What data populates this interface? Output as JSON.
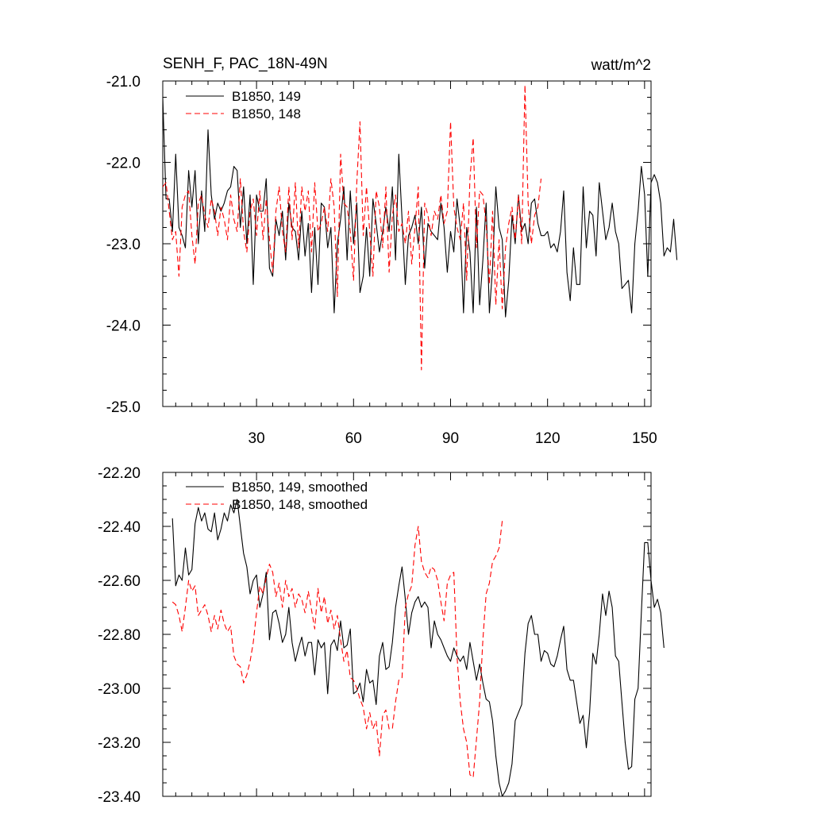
{
  "figure": {
    "title": "SENH_F, PAC_18N-49N",
    "units": "watt/m^2"
  },
  "chart_data": [
    {
      "type": "line",
      "title": "SENH_F, PAC_18N-49N",
      "units": "watt/m^2",
      "xlim": [
        1,
        152
      ],
      "ylim": [
        -25.0,
        -21.0
      ],
      "x_ticks": [
        30,
        60,
        90,
        120,
        150
      ],
      "x_tick_labels": [
        "30",
        "60",
        "90",
        "120",
        "150"
      ],
      "y_ticks": [
        -25.0,
        -24.0,
        -23.0,
        -22.0,
        -21.0
      ],
      "y_tick_labels": [
        "-25.0",
        "-24.0",
        "-23.0",
        "-22.0",
        "-21.0"
      ],
      "legend_position": "top-left",
      "series": [
        {
          "name": "B1850, 149",
          "color": "#000000",
          "dash": "solid",
          "x_start": 1,
          "values": [
            -21.2,
            -22.45,
            -22.45,
            -22.85,
            -21.9,
            -22.8,
            -22.9,
            -23.05,
            -22.1,
            -22.55,
            -22.1,
            -23.0,
            -22.35,
            -22.85,
            -21.6,
            -22.4,
            -22.7,
            -22.5,
            -22.6,
            -22.5,
            -22.35,
            -22.3,
            -22.05,
            -22.1,
            -22.8,
            -22.3,
            -23.0,
            -22.4,
            -23.5,
            -22.4,
            -22.6,
            -22.6,
            -22.2,
            -23.3,
            -23.4,
            -22.7,
            -22.9,
            -22.6,
            -23.2,
            -22.5,
            -22.8,
            -22.85,
            -23.2,
            -22.6,
            -23.15,
            -22.75,
            -23.6,
            -22.8,
            -23.5,
            -22.5,
            -22.55,
            -23.05,
            -22.8,
            -23.85,
            -23.0,
            -22.7,
            -22.3,
            -23.2,
            -22.35,
            -23.0,
            -22.5,
            -23.6,
            -23.4,
            -22.8,
            -23.4,
            -22.45,
            -22.75,
            -23.1,
            -22.85,
            -22.55,
            -22.85,
            -22.3,
            -23.2,
            -21.9,
            -22.7,
            -23.5,
            -22.9,
            -22.8,
            -22.65,
            -23.0,
            -22.55,
            -23.3,
            -22.75,
            -22.85,
            -22.9,
            -22.95,
            -22.5,
            -22.8,
            -23.35,
            -22.85,
            -23.1,
            -22.45,
            -22.8,
            -23.85,
            -22.8,
            -23.1,
            -23.85,
            -22.55,
            -23.75,
            -23.2,
            -22.5,
            -23.85,
            -23.3,
            -22.3,
            -22.8,
            -22.95,
            -23.9,
            -23.45,
            -22.65,
            -23.0,
            -22.4,
            -22.85,
            -22.75,
            -23.0,
            -22.5,
            -22.45,
            -22.75,
            -22.9,
            -22.9,
            -22.85,
            -23.05,
            -23.0,
            -23.1,
            -22.85,
            -22.35,
            -23.35,
            -23.7,
            -23.05,
            -23.5,
            -23.5,
            -22.3,
            -23.05,
            -22.6,
            -22.65,
            -23.15,
            -22.25,
            -22.6,
            -22.95,
            -22.8,
            -22.5,
            -22.85,
            -23.0,
            -23.55,
            -23.5,
            -23.45,
            -23.85,
            -23.0,
            -22.6,
            -22.05,
            -22.4,
            -23.4,
            -22.25,
            -22.15,
            -22.25,
            -22.5,
            -23.15,
            -23.05,
            -23.1,
            -22.7,
            -23.2
          ]
        },
        {
          "name": "B1850, 148",
          "color": "#ff0000",
          "dash": "dashed",
          "x_start": 1,
          "values": [
            -22.3,
            -22.25,
            -22.6,
            -22.95,
            -22.85,
            -23.4,
            -22.55,
            -22.4,
            -22.35,
            -22.9,
            -23.25,
            -22.5,
            -22.4,
            -22.65,
            -22.8,
            -22.45,
            -22.6,
            -22.9,
            -22.55,
            -22.7,
            -22.95,
            -22.4,
            -22.7,
            -22.85,
            -22.2,
            -22.85,
            -23.1,
            -22.6,
            -22.45,
            -22.9,
            -22.35,
            -22.95,
            -22.45,
            -22.95,
            -23.35,
            -22.6,
            -22.3,
            -22.85,
            -23.1,
            -22.3,
            -22.95,
            -22.25,
            -23.05,
            -22.3,
            -22.6,
            -22.35,
            -23.1,
            -22.25,
            -22.85,
            -22.75,
            -22.55,
            -22.85,
            -22.2,
            -22.55,
            -23.65,
            -21.9,
            -22.5,
            -22.55,
            -22.85,
            -23.45,
            -22.25,
            -21.5,
            -22.9,
            -22.3,
            -22.85,
            -23.4,
            -22.35,
            -22.55,
            -23.05,
            -22.3,
            -23.35,
            -22.65,
            -22.4,
            -22.85,
            -22.75,
            -23.0,
            -22.6,
            -23.25,
            -22.8,
            -22.3,
            -24.55,
            -22.5,
            -22.65,
            -22.9,
            -22.6,
            -22.7,
            -22.4,
            -22.75,
            -22.6,
            -21.5,
            -22.55,
            -22.8,
            -22.95,
            -22.5,
            -23.45,
            -22.2,
            -21.7,
            -23.05,
            -22.35,
            -22.4,
            -22.75,
            -23.5,
            -22.6,
            -23.75,
            -22.95,
            -23.8,
            -23.05,
            -22.75,
            -22.55,
            -22.95,
            -22.4,
            -23.0,
            -21.05,
            -22.5,
            -23.0,
            -22.65,
            -22.55,
            -22.2
          ]
        }
      ]
    },
    {
      "type": "line",
      "title": "",
      "xlim": [
        1,
        152
      ],
      "ylim": [
        -23.4,
        -22.2
      ],
      "x_ticks": [
        30,
        60,
        90,
        120,
        150
      ],
      "y_ticks": [
        -23.4,
        -23.2,
        -23.0,
        -22.8,
        -22.6,
        -22.4,
        -22.2
      ],
      "y_tick_labels": [
        "-23.40",
        "-23.20",
        "-23.00",
        "-22.80",
        "-22.60",
        "-22.40",
        "-22.20"
      ],
      "legend_position": "top-left",
      "series": [
        {
          "name": "B1850, 149, smoothed",
          "color": "#000000",
          "dash": "solid",
          "x_start": 4,
          "values": [
            -22.37,
            -22.62,
            -22.58,
            -22.6,
            -22.48,
            -22.58,
            -22.56,
            -22.39,
            -22.33,
            -22.38,
            -22.35,
            -22.41,
            -22.42,
            -22.35,
            -22.45,
            -22.41,
            -22.35,
            -22.38,
            -22.32,
            -22.35,
            -22.3,
            -22.4,
            -22.5,
            -22.55,
            -22.65,
            -22.6,
            -22.58,
            -22.7,
            -22.65,
            -22.57,
            -22.82,
            -22.72,
            -22.71,
            -22.76,
            -22.83,
            -22.8,
            -22.7,
            -22.83,
            -22.9,
            -22.85,
            -22.81,
            -22.88,
            -22.83,
            -22.83,
            -22.95,
            -22.82,
            -22.85,
            -22.83,
            -23.02,
            -22.84,
            -22.82,
            -22.86,
            -22.75,
            -22.85,
            -22.84,
            -22.78,
            -23.02,
            -23.01,
            -22.98,
            -23.05,
            -22.93,
            -22.98,
            -22.97,
            -23.06,
            -22.88,
            -22.83,
            -22.93,
            -22.92,
            -22.83,
            -22.7,
            -22.62,
            -22.55,
            -22.67,
            -22.8,
            -22.72,
            -22.68,
            -22.66,
            -22.7,
            -22.68,
            -22.7,
            -22.85,
            -22.75,
            -22.8,
            -22.82,
            -22.85,
            -22.88,
            -22.9,
            -22.85,
            -22.88,
            -22.9,
            -22.88,
            -22.93,
            -22.83,
            -22.9,
            -22.97,
            -22.91,
            -22.98,
            -23.04,
            -23.05,
            -23.12,
            -23.25,
            -23.35,
            -23.4,
            -23.38,
            -23.35,
            -23.28,
            -23.12,
            -23.09,
            -23.06,
            -22.87,
            -22.76,
            -22.73,
            -22.8,
            -22.8,
            -22.9,
            -22.86,
            -22.87,
            -22.91,
            -22.92,
            -22.88,
            -22.82,
            -22.77,
            -22.93,
            -22.97,
            -22.97,
            -23.05,
            -23.13,
            -23.1,
            -23.22,
            -23.09,
            -22.87,
            -22.91,
            -22.8,
            -22.65,
            -22.73,
            -22.64,
            -22.7,
            -22.88,
            -22.9,
            -23.05,
            -23.2,
            -23.3,
            -23.29,
            -23.04,
            -23.0,
            -22.72,
            -22.46,
            -22.46,
            -22.6,
            -22.7,
            -22.67,
            -22.72,
            -22.85
          ]
        },
        {
          "name": "B1850, 148, smoothed",
          "color": "#ff0000",
          "dash": "dashed",
          "x_start": 4,
          "values": [
            -22.68,
            -22.69,
            -22.73,
            -22.79,
            -22.7,
            -22.6,
            -22.64,
            -22.62,
            -22.73,
            -22.71,
            -22.69,
            -22.73,
            -22.79,
            -22.73,
            -22.78,
            -22.71,
            -22.76,
            -22.79,
            -22.77,
            -22.88,
            -22.91,
            -22.92,
            -22.98,
            -22.95,
            -22.9,
            -22.83,
            -22.72,
            -22.62,
            -22.65,
            -22.59,
            -22.54,
            -22.57,
            -22.66,
            -22.61,
            -22.7,
            -22.6,
            -22.66,
            -22.63,
            -22.7,
            -22.65,
            -22.67,
            -22.72,
            -22.64,
            -22.71,
            -22.78,
            -22.63,
            -22.72,
            -22.66,
            -22.76,
            -22.71,
            -22.78,
            -22.73,
            -22.82,
            -22.9,
            -22.86,
            -22.96,
            -22.97,
            -23.0,
            -23.04,
            -23.07,
            -23.15,
            -23.09,
            -23.15,
            -23.12,
            -23.25,
            -23.1,
            -23.08,
            -23.15,
            -23.15,
            -23.05,
            -22.97,
            -22.96,
            -22.7,
            -22.65,
            -22.62,
            -22.47,
            -22.4,
            -22.53,
            -22.57,
            -22.59,
            -22.55,
            -22.56,
            -22.6,
            -22.68,
            -22.75,
            -22.61,
            -22.58,
            -22.57,
            -22.88,
            -23.05,
            -23.15,
            -23.2,
            -23.32,
            -23.33,
            -23.19,
            -23.05,
            -22.82,
            -22.65,
            -22.61,
            -22.53,
            -22.51,
            -22.48,
            -22.38
          ]
        }
      ]
    }
  ]
}
